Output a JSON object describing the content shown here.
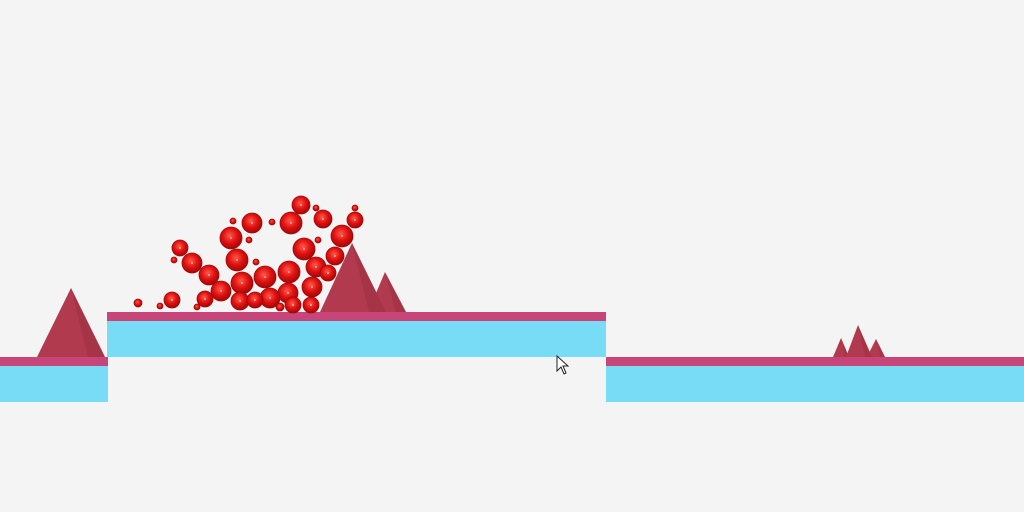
{
  "game": {
    "colors": {
      "background": "#f4f4f4",
      "platform_top": "#c8457a",
      "platform_body": "#78dcf6",
      "spike": "#b23a4e",
      "spike_shade": "#8f2a3c",
      "ball": "#e01010",
      "ball_edge": "#a00808"
    },
    "objects": [
      "platforms",
      "spikes",
      "red-balls",
      "mouse-cursor"
    ]
  }
}
